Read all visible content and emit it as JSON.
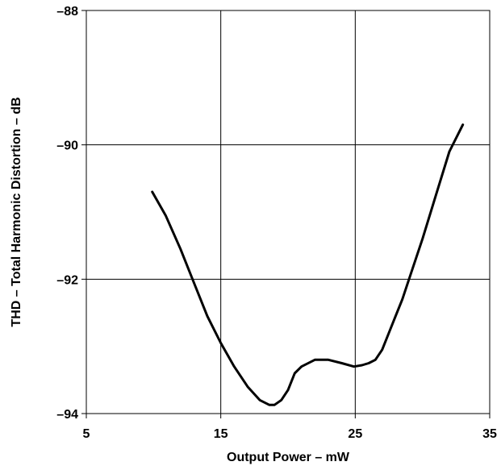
{
  "chart_data": {
    "type": "line",
    "title": "",
    "xlabel": "Output Power – mW",
    "ylabel": "THD – Total Harmonic Distortion – dB",
    "xlim": [
      5,
      35
    ],
    "ylim": [
      -94,
      -88
    ],
    "x_ticks": [
      5,
      15,
      25,
      35
    ],
    "y_ticks": [
      -88,
      -90,
      -92,
      -94
    ],
    "x_tick_labels": [
      "5",
      "15",
      "25",
      "35"
    ],
    "y_tick_labels": [
      "–88",
      "–90",
      "–92",
      "–94"
    ],
    "grid": true,
    "legend": "none",
    "line_color": "#000000",
    "series": [
      {
        "x": [
          9.9,
          10.9,
          12.0,
          13.0,
          14.0,
          15.0,
          16.0,
          17.0,
          17.9,
          18.6,
          19.0,
          19.5,
          20.0,
          20.5,
          21.0,
          22.0,
          23.0,
          24.0,
          24.9,
          25.5,
          26.0,
          26.5,
          27.0,
          27.5,
          28.0,
          28.5,
          29.0,
          30.0,
          31.0,
          32.0,
          33.0
        ],
        "y": [
          -90.7,
          -91.05,
          -91.55,
          -92.05,
          -92.55,
          -92.95,
          -93.3,
          -93.6,
          -93.8,
          -93.87,
          -93.87,
          -93.8,
          -93.65,
          -93.4,
          -93.3,
          -93.2,
          -93.2,
          -93.25,
          -93.3,
          -93.28,
          -93.25,
          -93.2,
          -93.05,
          -92.8,
          -92.55,
          -92.3,
          -92.0,
          -91.4,
          -90.75,
          -90.1,
          -89.7
        ]
      }
    ]
  }
}
